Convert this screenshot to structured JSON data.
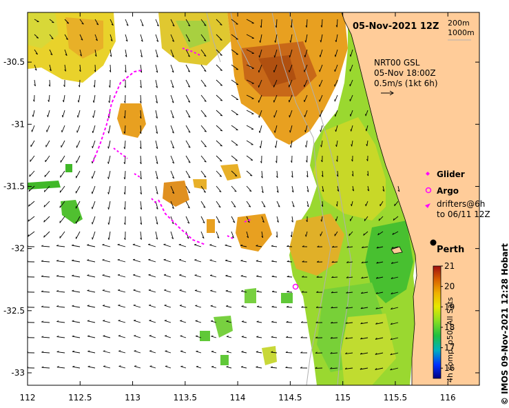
{
  "title": {
    "date_label": "05-Nov-2021 12Z"
  },
  "isobaths": {
    "line1": "200m",
    "line2": "1000m"
  },
  "current_legend": {
    "line1": "NRT00 GSL",
    "line2": "05-Nov 18:00Z",
    "line3": "0.5m/s (1kt 6h)"
  },
  "symbol_legend": {
    "glider": "Glider",
    "argo": "Argo",
    "drifters_line1": "drifters@6h",
    "drifters_line2": "to 06/11 12Z"
  },
  "place": {
    "city": "Perth"
  },
  "colorbar": {
    "ticks": [
      "21",
      "20",
      "19",
      "18",
      "17",
      "16"
    ],
    "label": "4h comp, p50, All Sats",
    "min": 15.5,
    "max": 21
  },
  "credit": "© IMOS 09-Nov-2021 12:28 Hobart",
  "axes": {
    "x_ticks": [
      "112",
      "112.5",
      "113",
      "113.5",
      "114",
      "114.5",
      "115",
      "115.5",
      "116"
    ],
    "y_ticks": [
      "-30.5",
      "-31",
      "-31.5",
      "-32",
      "-32.5",
      "-33"
    ],
    "lon_range": [
      112,
      116.3
    ],
    "lat_range": [
      -33.1,
      -30.1
    ]
  },
  "colors": {
    "land": "#ffcc99",
    "glider": "#ff00ff",
    "argo": "#ff00ff",
    "warm_sst": "#e8a020",
    "cool_sst": "#6ed03a"
  }
}
